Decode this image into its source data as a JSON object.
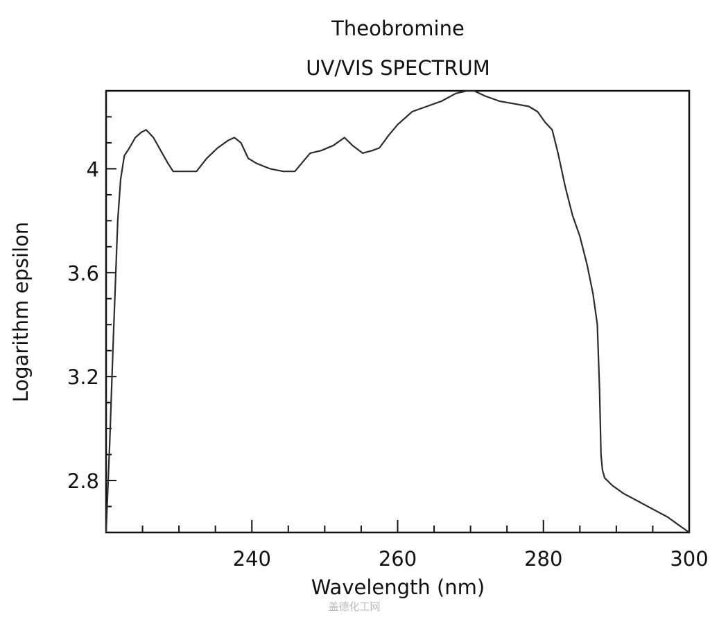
{
  "chart_data": {
    "type": "line",
    "title": "Theobromine",
    "subtitle": "UV/VIS SPECTRUM",
    "xlabel": "Wavelength (nm)",
    "ylabel": "Logarithm epsilon",
    "xlim": [
      220,
      300
    ],
    "ylim": [
      2.6,
      4.3
    ],
    "xticks_major": [
      240,
      260,
      280,
      300
    ],
    "xticks_minor_step": 5,
    "yticks_major": [
      2.8,
      3.2,
      3.6,
      4
    ],
    "yticks_major_labels": [
      "2.8",
      "3.2",
      "3.6",
      "4"
    ],
    "yticks_minor_step": 0.1,
    "grid": false,
    "legend": null,
    "series": [
      {
        "name": "Theobromine",
        "color": "#2b2b2b",
        "x": [
          220.0,
          220.5,
          221.0,
          221.6,
          222.0,
          222.5,
          223.2,
          224.0,
          224.8,
          225.5,
          226.5,
          227.5,
          228.5,
          229.2,
          230.5,
          232.4,
          233.8,
          235.3,
          236.8,
          237.6,
          238.5,
          239.5,
          240.7,
          242.5,
          244.3,
          245.9,
          246.8,
          248.0,
          249.5,
          251.2,
          252.7,
          253.8,
          255.2,
          256.5,
          257.5,
          258.8,
          260.0,
          262.0,
          264.0,
          266.0,
          268.0,
          269.5,
          270.5,
          272.0,
          274.0,
          276.0,
          278.0,
          279.2,
          280.2,
          281.2,
          282.0,
          283.0,
          284.0,
          285.0,
          286.0,
          286.8,
          287.4,
          287.7,
          287.9,
          288.1,
          288.4,
          289.5,
          291.0,
          293.0,
          295.0,
          297.0,
          298.5,
          300.0
        ],
        "y": [
          2.6,
          2.95,
          3.35,
          3.8,
          3.96,
          4.05,
          4.08,
          4.12,
          4.14,
          4.15,
          4.12,
          4.07,
          4.02,
          3.99,
          3.99,
          3.99,
          4.04,
          4.08,
          4.11,
          4.12,
          4.1,
          4.04,
          4.02,
          4.0,
          3.99,
          3.99,
          4.02,
          4.06,
          4.07,
          4.09,
          4.12,
          4.09,
          4.06,
          4.07,
          4.08,
          4.13,
          4.17,
          4.22,
          4.24,
          4.26,
          4.29,
          4.3,
          4.3,
          4.28,
          4.26,
          4.25,
          4.24,
          4.22,
          4.18,
          4.15,
          4.06,
          3.93,
          3.82,
          3.74,
          3.63,
          3.52,
          3.4,
          3.15,
          2.9,
          2.84,
          2.81,
          2.78,
          2.75,
          2.72,
          2.69,
          2.66,
          2.63,
          2.6
        ]
      }
    ]
  },
  "watermark": "盖德化工网"
}
